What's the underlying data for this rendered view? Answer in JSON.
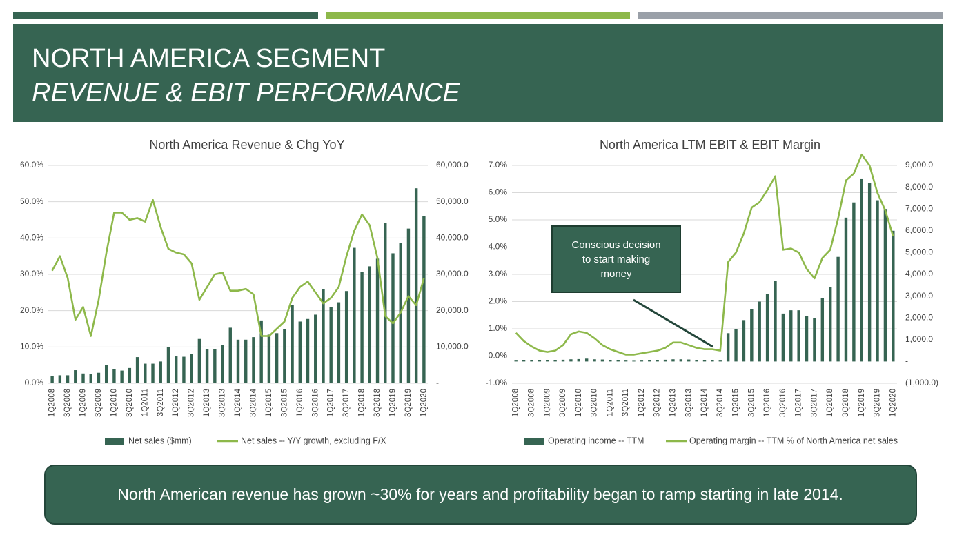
{
  "header": {
    "title": "NORTH AMERICA SEGMENT",
    "subtitle": "REVENUE & EBIT PERFORMANCE"
  },
  "footer": "North American revenue has grown ~30% for years and profitability began to ramp starting in late 2014.",
  "chart_data": [
    {
      "type": "combo",
      "title": "North America Revenue & Chg YoY",
      "categories": [
        "1Q2008",
        null,
        "3Q2008",
        null,
        "1Q2009",
        null,
        "3Q2009",
        null,
        "1Q2010",
        null,
        "3Q2010",
        null,
        "1Q2011",
        null,
        "3Q2011",
        null,
        "1Q2012",
        null,
        "3Q2012",
        null,
        "1Q2013",
        null,
        "3Q2013",
        null,
        "1Q2014",
        null,
        "3Q2014",
        null,
        "1Q2015",
        null,
        "3Q2015",
        null,
        "1Q2016",
        null,
        "3Q2016",
        null,
        "1Q2017",
        null,
        "3Q2017",
        null,
        "1Q2018",
        null,
        "3Q2018",
        null,
        "1Q2019",
        null,
        "3Q2019",
        null,
        "1Q2020"
      ],
      "series": [
        {
          "name": "Net sales ($mm)",
          "type": "bar",
          "axis": "y2",
          "color": "#366452",
          "values": [
            2000,
            2200,
            2200,
            3600,
            2700,
            2500,
            2900,
            5000,
            3900,
            3500,
            4200,
            7200,
            5400,
            5400,
            6000,
            10000,
            7400,
            7300,
            8000,
            12200,
            9400,
            9400,
            10500,
            15300,
            12000,
            12000,
            12700,
            17300,
            13400,
            13800,
            15000,
            21500,
            17000,
            17700,
            18900,
            26000,
            21000,
            22300,
            25400,
            37300,
            30700,
            32200,
            34300,
            44200,
            35800,
            38700,
            42600,
            53700,
            46100
          ]
        },
        {
          "name": "Net sales -- Y/Y growth, excluding F/X",
          "type": "line",
          "axis": "y",
          "color": "#8db84a",
          "values": [
            31,
            35,
            29,
            17.5,
            21,
            13,
            23,
            36,
            47,
            47,
            45,
            45.5,
            44.5,
            50.5,
            43,
            37,
            36,
            35.5,
            33,
            23,
            26.5,
            30,
            30.5,
            25.5,
            25.5,
            26,
            24.5,
            13,
            13,
            15,
            17,
            23.5,
            26.5,
            28,
            25,
            22,
            23.5,
            26.5,
            35,
            42,
            46.5,
            43.5,
            34.5,
            18.5,
            16.5,
            19.5,
            24,
            21.5,
            29
          ]
        }
      ],
      "ylim": [
        0,
        60
      ],
      "yticks": [
        {
          "value": 0,
          "label": "0.0%"
        },
        {
          "value": 10,
          "label": "10.0%"
        },
        {
          "value": 20,
          "label": "20.0%"
        },
        {
          "value": 30,
          "label": "30.0%"
        },
        {
          "value": 40,
          "label": "40.0%"
        },
        {
          "value": 50,
          "label": "50.0%"
        },
        {
          "value": 60,
          "label": "60.0%"
        }
      ],
      "y2lim": [
        0,
        60000
      ],
      "y2ticks": [
        {
          "value": 0,
          "label": "-"
        },
        {
          "value": 10000,
          "label": "10,000.0"
        },
        {
          "value": 20000,
          "label": "20,000.0"
        },
        {
          "value": 30000,
          "label": "30,000.0"
        },
        {
          "value": 40000,
          "label": "40,000.0"
        },
        {
          "value": 50000,
          "label": "50,000.0"
        },
        {
          "value": 60000,
          "label": "60,000.0"
        }
      ],
      "grid": true,
      "legend": "bottom"
    },
    {
      "type": "combo",
      "title": "North America LTM EBIT & EBIT Margin",
      "categories": [
        "1Q2008",
        null,
        "3Q2008",
        null,
        "1Q2009",
        null,
        "3Q2009",
        null,
        "1Q2010",
        null,
        "3Q2010",
        null,
        "1Q2011",
        null,
        "3Q2011",
        null,
        "1Q2012",
        null,
        "3Q2012",
        null,
        "1Q2013",
        null,
        "3Q2013",
        null,
        "1Q2014",
        null,
        "3Q2014",
        null,
        "1Q2015",
        null,
        "3Q2015",
        null,
        "1Q2016",
        null,
        "3Q2016",
        null,
        "1Q2017",
        null,
        "3Q2017",
        null,
        "1Q2018",
        null,
        "3Q2018",
        null,
        "1Q2019",
        null,
        "3Q2019",
        null,
        "1Q2020"
      ],
      "series": [
        {
          "name": "Operating income -- TTM",
          "type": "bar",
          "axis": "y2",
          "color": "#366452",
          "values": [
            40,
            50,
            50,
            60,
            70,
            60,
            80,
            100,
            110,
            130,
            100,
            90,
            70,
            60,
            40,
            30,
            40,
            60,
            70,
            80,
            100,
            100,
            90,
            70,
            60,
            50,
            40,
            1300,
            1500,
            1900,
            2400,
            2750,
            3100,
            3700,
            2200,
            2350,
            2350,
            2100,
            2000,
            2900,
            3400,
            4800,
            6600,
            7300,
            8400,
            8200,
            7400,
            7000,
            6000
          ]
        },
        {
          "name": "Operating margin -- TTM % of North America net sales",
          "type": "line",
          "axis": "y",
          "color": "#8db84a",
          "values": [
            0.85,
            0.55,
            0.35,
            0.2,
            0.15,
            0.2,
            0.4,
            0.8,
            0.9,
            0.85,
            0.65,
            0.4,
            0.25,
            0.15,
            0.05,
            0.05,
            0.1,
            0.15,
            0.2,
            0.3,
            0.5,
            0.5,
            0.4,
            0.3,
            0.25,
            0.25,
            0.2,
            3.45,
            3.8,
            4.5,
            5.45,
            5.65,
            6.1,
            6.6,
            3.9,
            3.95,
            3.8,
            3.2,
            2.85,
            3.6,
            3.9,
            5.05,
            6.45,
            6.7,
            7.4,
            7.0,
            6.0,
            5.35,
            4.4
          ]
        }
      ],
      "ylim": [
        -1,
        7
      ],
      "yticks": [
        {
          "value": -1,
          "label": "-1.0%"
        },
        {
          "value": 0,
          "label": "0.0%"
        },
        {
          "value": 1,
          "label": "1.0%"
        },
        {
          "value": 2,
          "label": "2.0%"
        },
        {
          "value": 3,
          "label": "3.0%"
        },
        {
          "value": 4,
          "label": "4.0%"
        },
        {
          "value": 5,
          "label": "5.0%"
        },
        {
          "value": 6,
          "label": "6.0%"
        },
        {
          "value": 7,
          "label": "7.0%"
        }
      ],
      "y2lim": [
        -1000,
        9000
      ],
      "y2ticks": [
        {
          "value": -1000,
          "label": "(1,000.0)"
        },
        {
          "value": 0,
          "label": "-"
        },
        {
          "value": 1000,
          "label": "1,000.0"
        },
        {
          "value": 2000,
          "label": "2,000.0"
        },
        {
          "value": 3000,
          "label": "3,000.0"
        },
        {
          "value": 4000,
          "label": "4,000.0"
        },
        {
          "value": 5000,
          "label": "5,000.0"
        },
        {
          "value": 6000,
          "label": "6,000.0"
        },
        {
          "value": 7000,
          "label": "7,000.0"
        },
        {
          "value": 8000,
          "label": "8,000.0"
        },
        {
          "value": 9000,
          "label": "9,000.0"
        }
      ],
      "grid": true,
      "legend": "bottom",
      "annotation": "Conscious decision to start making money"
    }
  ]
}
